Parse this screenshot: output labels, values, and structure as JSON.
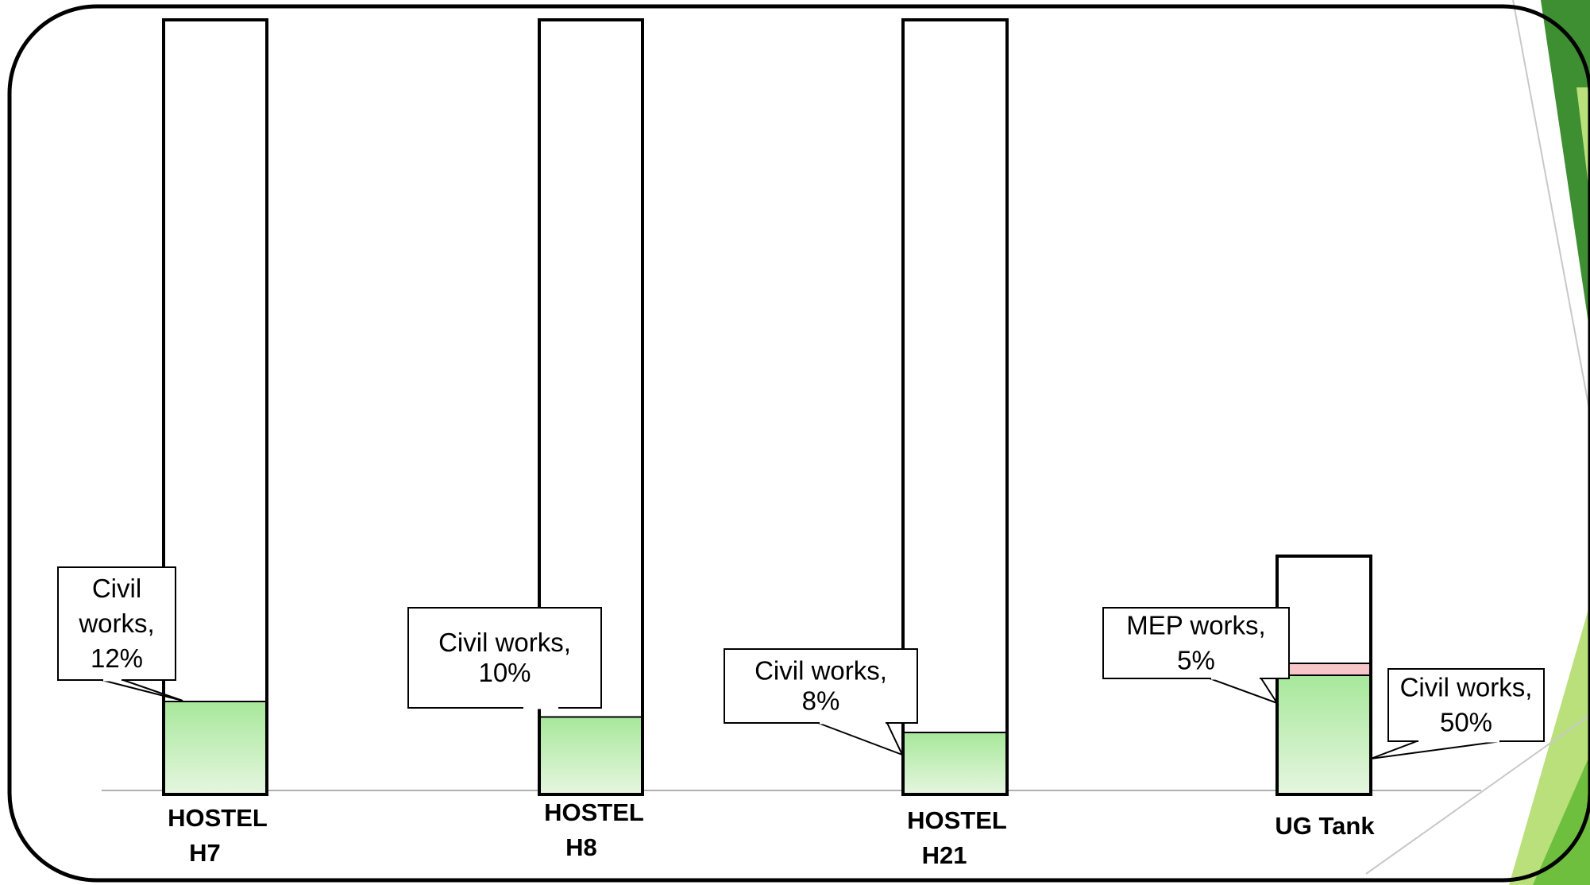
{
  "colors": {
    "frame": "#000000",
    "accent_green_dark": "#3e8e32",
    "accent_green_mid": "#6fbf3f",
    "accent_green_light": "#b9e07a",
    "civil_fill_top": "#a7e89a",
    "civil_fill_bottom": "#e6f6e0",
    "mep_fill": "#f6c6c8",
    "baseline": "#b0b0b0"
  },
  "chart_data": {
    "type": "bar",
    "stacked": true,
    "categories": [
      "HOSTEL H7",
      "HOSTEL H8",
      "HOSTEL H21",
      "UG Tank"
    ],
    "category_labels": [
      [
        "HOSTEL",
        "H7"
      ],
      [
        "HOSTEL",
        "H8"
      ],
      [
        "HOSTEL",
        "H21"
      ],
      [
        "UG Tank"
      ]
    ],
    "series": [
      {
        "name": "Civil works",
        "values": [
          12,
          10,
          8,
          50
        ]
      },
      {
        "name": "MEP works",
        "values": [
          0,
          0,
          0,
          5
        ]
      }
    ],
    "capacity": [
      100,
      100,
      100,
      100
    ],
    "data_labels": [
      {
        "category": "HOSTEL H7",
        "series": "Civil works",
        "lines": [
          "Civil",
          "works,",
          "12%"
        ]
      },
      {
        "category": "HOSTEL H8",
        "series": "Civil works",
        "lines": [
          "Civil works,",
          "10%"
        ]
      },
      {
        "category": "HOSTEL H21",
        "series": "Civil works",
        "lines": [
          "Civil works,",
          "8%"
        ]
      },
      {
        "category": "UG Tank",
        "series": "MEP works",
        "lines": [
          "MEP works,",
          "5%"
        ]
      },
      {
        "category": "UG Tank",
        "series": "Civil works",
        "lines": [
          "Civil works,",
          "50%"
        ]
      }
    ],
    "title": "",
    "xlabel": "",
    "ylabel": "",
    "ylim": [
      0,
      100
    ],
    "grid": false,
    "legend": "none"
  }
}
